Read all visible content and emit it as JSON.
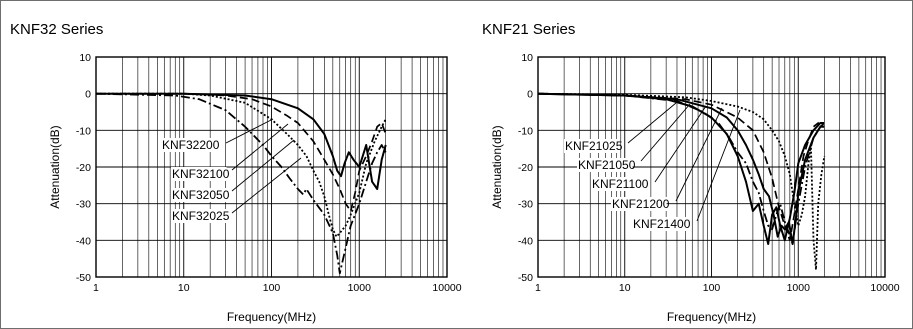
{
  "chart_data": [
    {
      "type": "line",
      "title": "KNF32 Series",
      "xlabel": "Frequency(MHz)",
      "ylabel": "Attenuation(dB)",
      "xscale": "log",
      "xlim": [
        1,
        10000
      ],
      "ylim": [
        -50,
        10
      ],
      "x_tick_labels": [
        "1",
        "10",
        "100",
        "1000",
        "10000"
      ],
      "y_tick_labels": [
        "10",
        "0",
        "-10",
        "-20",
        "-30",
        "-40",
        "-50"
      ],
      "grid": true,
      "series": [
        {
          "name": "KNF32200",
          "dash": "solid",
          "x": [
            1,
            10,
            50,
            100,
            200,
            300,
            400,
            500,
            560,
            620,
            680,
            760,
            860,
            1000,
            1200,
            1400,
            1600,
            1800,
            2000
          ],
          "y": [
            0,
            0,
            -0.5,
            -1.5,
            -4,
            -7,
            -11,
            -17,
            -21,
            -22.5,
            -19,
            -16,
            -18,
            -20,
            -14,
            -24,
            -26,
            -18,
            -14
          ]
        },
        {
          "name": "KNF32100",
          "dash": "dashed",
          "x": [
            1,
            10,
            30,
            60,
            100,
            150,
            200,
            300,
            400,
            500,
            600,
            700,
            800,
            900,
            1000,
            1200,
            1400,
            1600,
            1800,
            2000
          ],
          "y": [
            0,
            0,
            -0.5,
            -1.5,
            -3.5,
            -6,
            -8,
            -13,
            -18,
            -22,
            -26,
            -30,
            -32,
            -27,
            -21,
            -17,
            -13,
            -9,
            -8,
            -11
          ]
        },
        {
          "name": "KNF32050",
          "dash": "dotted",
          "x": [
            1,
            10,
            20,
            50,
            100,
            150,
            200,
            250,
            300,
            350,
            400,
            450,
            500,
            550,
            600,
            700,
            800,
            1000,
            1200,
            1500,
            1800,
            2000
          ],
          "y": [
            0,
            0,
            -0.5,
            -2.5,
            -7,
            -11,
            -14,
            -17,
            -21,
            -24,
            -28,
            -33,
            -37,
            -39,
            -38,
            -36,
            -33,
            -27,
            -19,
            -13,
            -9,
            -7
          ]
        },
        {
          "name": "KNF32025",
          "dash": "dashdot",
          "x": [
            1,
            8,
            15,
            30,
            50,
            80,
            100,
            130,
            160,
            200,
            230,
            250,
            300,
            400,
            500,
            560,
            600,
            700,
            800,
            1000,
            1200,
            1400,
            1600,
            1800,
            2000
          ],
          "y": [
            0,
            -0.5,
            -1.5,
            -4.5,
            -9,
            -14,
            -17,
            -20,
            -23,
            -26,
            -27.5,
            -26,
            -29,
            -33,
            -38,
            -44,
            -49,
            -42,
            -36,
            -30,
            -24,
            -19,
            -16,
            -14,
            -16
          ]
        }
      ],
      "annotations": [
        "KNF32200",
        "KNF32100",
        "KNF32050",
        "KNF32025"
      ]
    },
    {
      "type": "line",
      "title": "KNF21 Series",
      "xlabel": "Frequency(MHz)",
      "ylabel": "Attenuation(dB)",
      "xscale": "log",
      "xlim": [
        1,
        10000
      ],
      "ylim": [
        -50,
        10
      ],
      "x_tick_labels": [
        "1",
        "10",
        "100",
        "1000",
        "10000"
      ],
      "y_tick_labels": [
        "10",
        "0",
        "-10",
        "-20",
        "-30",
        "-40",
        "-50"
      ],
      "grid": true,
      "series": [
        {
          "name": "KNF21025",
          "dash": "solid",
          "x": [
            1,
            10,
            30,
            60,
            100,
            150,
            200,
            250,
            300,
            350,
            400,
            450,
            500,
            560,
            620,
            700,
            800,
            900,
            1000,
            1200,
            1500,
            1800,
            2000
          ],
          "y": [
            0,
            -0.5,
            -1.5,
            -3.5,
            -6.5,
            -11,
            -17,
            -24,
            -32,
            -30,
            -36,
            -41,
            -33,
            -31,
            -36,
            -40,
            -34,
            -27,
            -19,
            -14,
            -10,
            -8,
            -8
          ]
        },
        {
          "name": "KNF21050",
          "dash": "dashdot",
          "x": [
            1,
            10,
            40,
            80,
            120,
            160,
            200,
            250,
            300,
            350,
            400,
            450,
            500,
            560,
            620,
            700,
            780,
            860,
            1000,
            1200,
            1500,
            1800,
            2000
          ],
          "y": [
            0,
            -0.5,
            -2,
            -5,
            -8,
            -12,
            -16,
            -19,
            -24,
            -27,
            -32,
            -36,
            -37,
            -33,
            -30,
            -35,
            -38,
            -41,
            -30,
            -20,
            -12,
            -9,
            -8
          ]
        },
        {
          "name": "KNF21100",
          "dash": "solid",
          "x": [
            1,
            10,
            40,
            100,
            150,
            200,
            250,
            300,
            350,
            400,
            460,
            520,
            580,
            640,
            700,
            780,
            860,
            940,
            1000,
            1200,
            1500,
            1800,
            2000
          ],
          "y": [
            0,
            -0.5,
            -1.5,
            -4,
            -6.5,
            -10,
            -14,
            -18,
            -22,
            -26,
            -28,
            -33,
            -39,
            -36,
            -37,
            -35,
            -41,
            -34,
            -27,
            -18,
            -12,
            -9,
            -9
          ]
        },
        {
          "name": "KNF21200",
          "dash": "dashed",
          "x": [
            1,
            10,
            50,
            100,
            200,
            300,
            400,
            500,
            600,
            700,
            800,
            900,
            1000,
            1150,
            1300,
            1500,
            1700,
            2000
          ],
          "y": [
            0,
            -0.5,
            -1.5,
            -3,
            -6.5,
            -10,
            -16,
            -23,
            -31,
            -36,
            -40,
            -33,
            -26,
            -17,
            -13,
            -9,
            -8,
            -9
          ]
        },
        {
          "name": "KNF21400",
          "dash": "dotted",
          "x": [
            1,
            10,
            50,
            100,
            200,
            300,
            400,
            500,
            600,
            700,
            800,
            900,
            1000,
            1100,
            1200,
            1300,
            1400,
            1500,
            1600,
            1700,
            1850,
            2000
          ],
          "y": [
            0,
            -0.3,
            -1,
            -2,
            -3.5,
            -5,
            -7,
            -10,
            -13,
            -17,
            -22,
            -30,
            -36,
            -33,
            -28,
            -20,
            -14,
            -40,
            -48,
            -30,
            -22,
            -17
          ]
        }
      ],
      "annotations": [
        "KNF21025",
        "KNF21050",
        "KNF21100",
        "KNF21200",
        "KNF21400"
      ]
    }
  ]
}
